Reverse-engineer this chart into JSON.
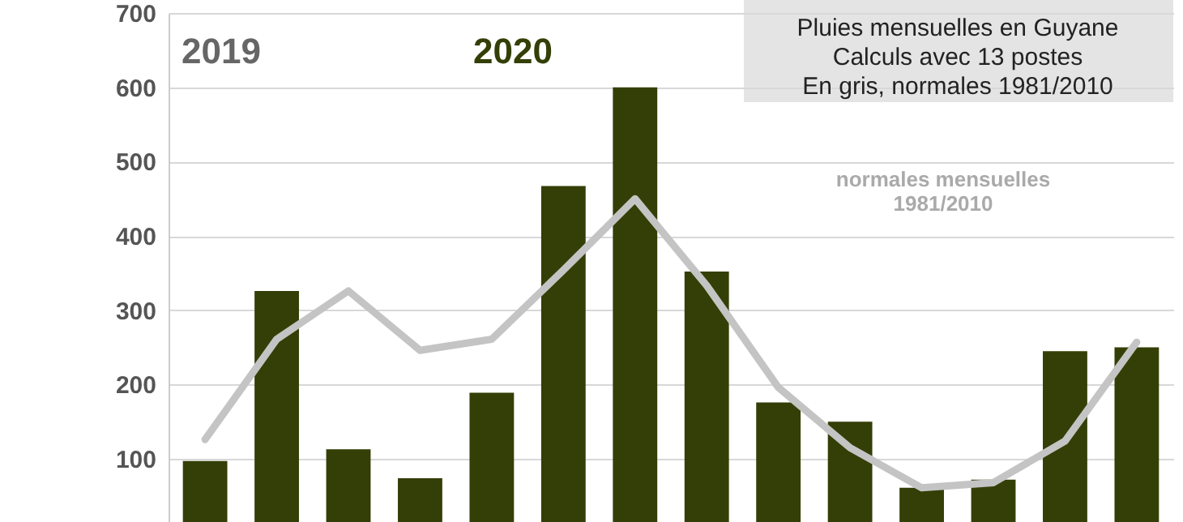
{
  "chart_data": {
    "type": "bar",
    "title": "Pluies mensuelles en Guyane",
    "subtitle": "Calculs avec 13 postes",
    "annotations": [
      "2019",
      "2020",
      "En gris, normales 1981/2010"
    ],
    "categories": [
      null,
      null,
      null,
      null,
      null,
      null,
      null,
      null,
      null,
      null,
      null,
      null,
      null,
      null
    ],
    "series": [
      {
        "color": "#333f06",
        "values": [
          97,
          326,
          113,
          74,
          189,
          467,
          600,
          352,
          176,
          150,
          61,
          72,
          245,
          250
        ]
      },
      {
        "type": "line",
        "name": "normales mensuelles\n1981/2010",
        "color": "#c4c4c4",
        "values": [
          126,
          261,
          326,
          246,
          261,
          354,
          450,
          333,
          196,
          115,
          61,
          68,
          124,
          257
        ]
      }
    ],
    "ylim": [
      15,
      700
    ],
    "yticks": [
      100,
      200,
      300,
      400,
      500,
      600,
      700
    ],
    "grid": "y"
  }
}
